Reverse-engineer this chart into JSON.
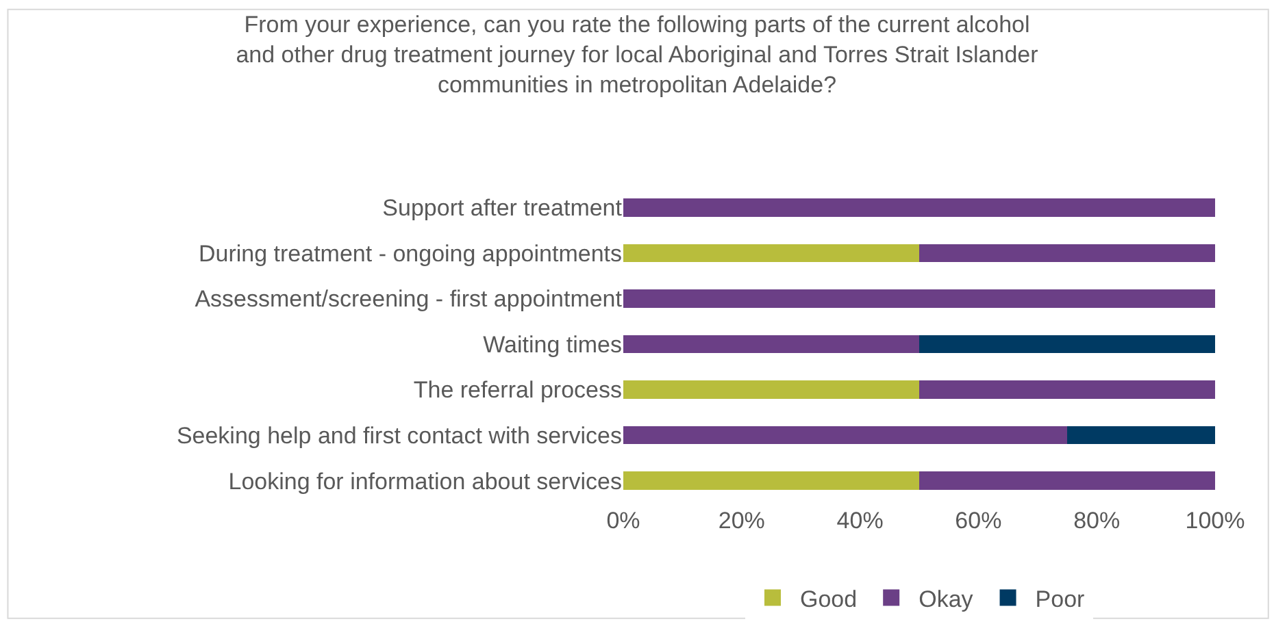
{
  "chart_data": {
    "type": "bar",
    "orientation": "horizontal",
    "stacked": true,
    "title": "From your experience, can you rate the following parts of the current alcohol and other drug treatment journey for local Aboriginal and Torres Strait Islander communities in metropolitan Adelaide?",
    "categories": [
      "Support after treatment",
      "During treatment - ongoing appointments",
      "Assessment/screening - first appointment",
      "Waiting times",
      "The referral process",
      "Seeking help and first contact with services",
      "Looking for information about services"
    ],
    "series": [
      {
        "name": "Good",
        "color": "#b8bd3c",
        "values": [
          0,
          50,
          0,
          0,
          50,
          0,
          50
        ]
      },
      {
        "name": "Okay",
        "color": "#6b3f86",
        "values": [
          100,
          50,
          100,
          50,
          50,
          75,
          50
        ]
      },
      {
        "name": "Poor",
        "color": "#003a63",
        "values": [
          0,
          0,
          0,
          50,
          0,
          25,
          0
        ]
      }
    ],
    "xlim": [
      0,
      100
    ],
    "xticks": [
      {
        "value": 0,
        "label": "0%"
      },
      {
        "value": 20,
        "label": "20%"
      },
      {
        "value": 40,
        "label": "40%"
      },
      {
        "value": 60,
        "label": "60%"
      },
      {
        "value": 80,
        "label": "80%"
      },
      {
        "value": 100,
        "label": "100%"
      }
    ],
    "grid": false,
    "legend": "bottom"
  }
}
